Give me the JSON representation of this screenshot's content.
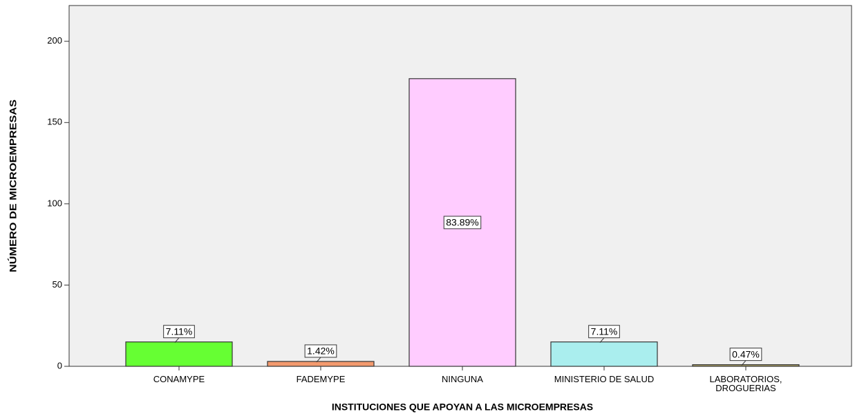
{
  "chart_data": {
    "type": "bar",
    "xlabel": "INSTITUCIONES QUE APOYAN A LAS MICROEMPRESAS",
    "ylabel": "NÚMERO DE MICROEMPRESAS",
    "categories": [
      "CONAMYPE",
      "FADEMYPE",
      "NINGUNA",
      "MINISTERIO DE SALUD",
      "LABORATORIOS,\nDROGUERIAS"
    ],
    "values": [
      15,
      3,
      177,
      15,
      1
    ],
    "percent_labels": [
      "7.11%",
      "1.42%",
      "83.89%",
      "7.11%",
      "0.47%"
    ],
    "colors": [
      "#66ff33",
      "#f39a6e",
      "#ffccff",
      "#aaeeee",
      "#b5a96a"
    ],
    "ylim": [
      0,
      222
    ],
    "yticks": [
      0,
      50,
      100,
      150,
      200
    ]
  }
}
